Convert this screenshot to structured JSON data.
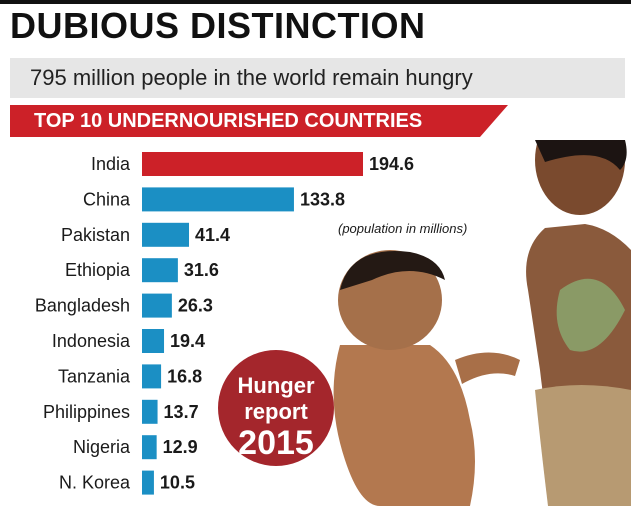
{
  "header": {
    "headline": "DUBIOUS DISTINCTION",
    "subtitle": "795 million people in the world remain hungry",
    "banner": "TOP 10 UNDERNOURISHED COUNTRIES"
  },
  "note": "(population in millions)",
  "badge": {
    "line1": "Hunger",
    "line2": "report",
    "line3": "2015"
  },
  "colors": {
    "highlight": "#cc2128",
    "bar": "#1b8fc4",
    "banner": "#cc2128",
    "badge": "#a4262c"
  },
  "chart_data": {
    "type": "bar",
    "orientation": "horizontal",
    "categories": [
      "India",
      "China",
      "Pakistan",
      "Ethiopia",
      "Bangladesh",
      "Indonesia",
      "Tanzania",
      "Philippines",
      "Nigeria",
      "N. Korea"
    ],
    "values": [
      194.6,
      133.8,
      41.4,
      31.6,
      26.3,
      19.4,
      16.8,
      13.7,
      12.9,
      10.5
    ],
    "value_labels": [
      "194.6",
      "133.8",
      "41.4",
      "31.6",
      "26.3",
      "19.4",
      "16.8",
      "13.7",
      "12.9",
      "10.5"
    ],
    "highlight_index": 0,
    "title": "TOP 10 UNDERNOURISHED COUNTRIES",
    "unit_note": "(population in millions)",
    "grid": false,
    "legend": "none"
  }
}
